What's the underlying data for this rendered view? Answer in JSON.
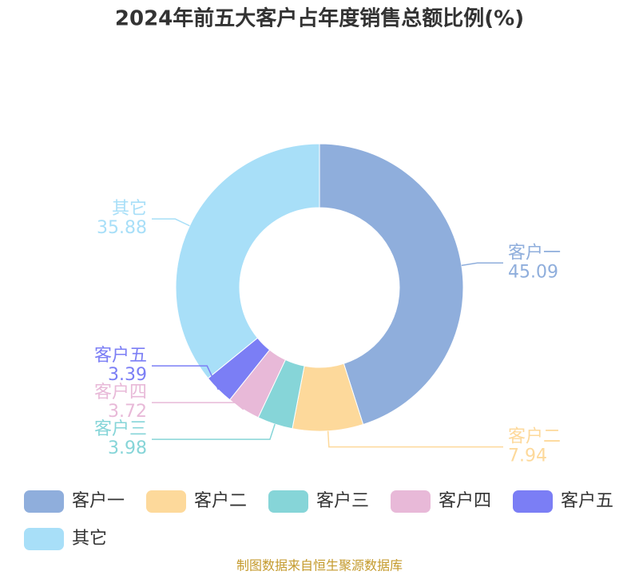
{
  "chart_data": {
    "type": "donut",
    "title": "2024年前五大客户占年度销售总额比例(%)",
    "categories": [
      "客户一",
      "客户二",
      "客户三",
      "客户四",
      "客户五",
      "其它"
    ],
    "values": [
      45.09,
      7.94,
      3.98,
      3.72,
      3.39,
      35.88
    ],
    "colors": [
      "#8faedc",
      "#fdd99b",
      "#86d5d8",
      "#e8b9d8",
      "#7b7ef5",
      "#a8dff8"
    ],
    "source": "制图数据来自恒生聚源数据库"
  }
}
